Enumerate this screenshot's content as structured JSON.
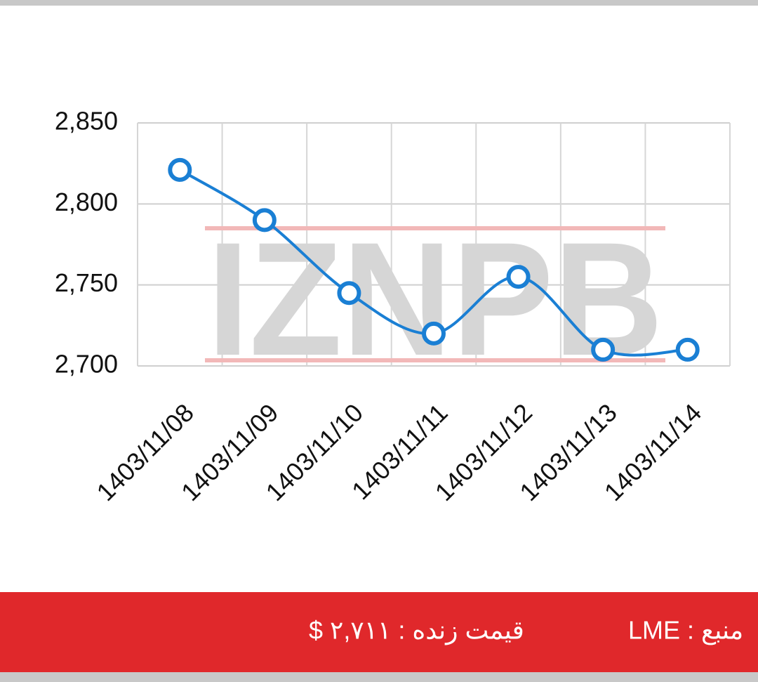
{
  "chart_data": {
    "type": "line",
    "categories": [
      "1403/11/08",
      "1403/11/09",
      "1403/11/10",
      "1403/11/11",
      "1403/11/12",
      "1403/11/13",
      "1403/11/14"
    ],
    "values": [
      2821,
      2790,
      2745,
      2720,
      2755,
      2710,
      2710
    ],
    "color": "#1a7fd4",
    "ylim": [
      2700,
      2850
    ],
    "yticks": [
      {
        "value": 2700,
        "label": "2,700"
      },
      {
        "value": 2750,
        "label": "2,750"
      },
      {
        "value": 2800,
        "label": "2,800"
      },
      {
        "value": 2850,
        "label": "2,850"
      }
    ],
    "grid": true
  },
  "watermark": "IZNPB",
  "footer": {
    "price": "قیمت زنده : ۲,۷۱۱ $",
    "source": "منبع : LME"
  }
}
